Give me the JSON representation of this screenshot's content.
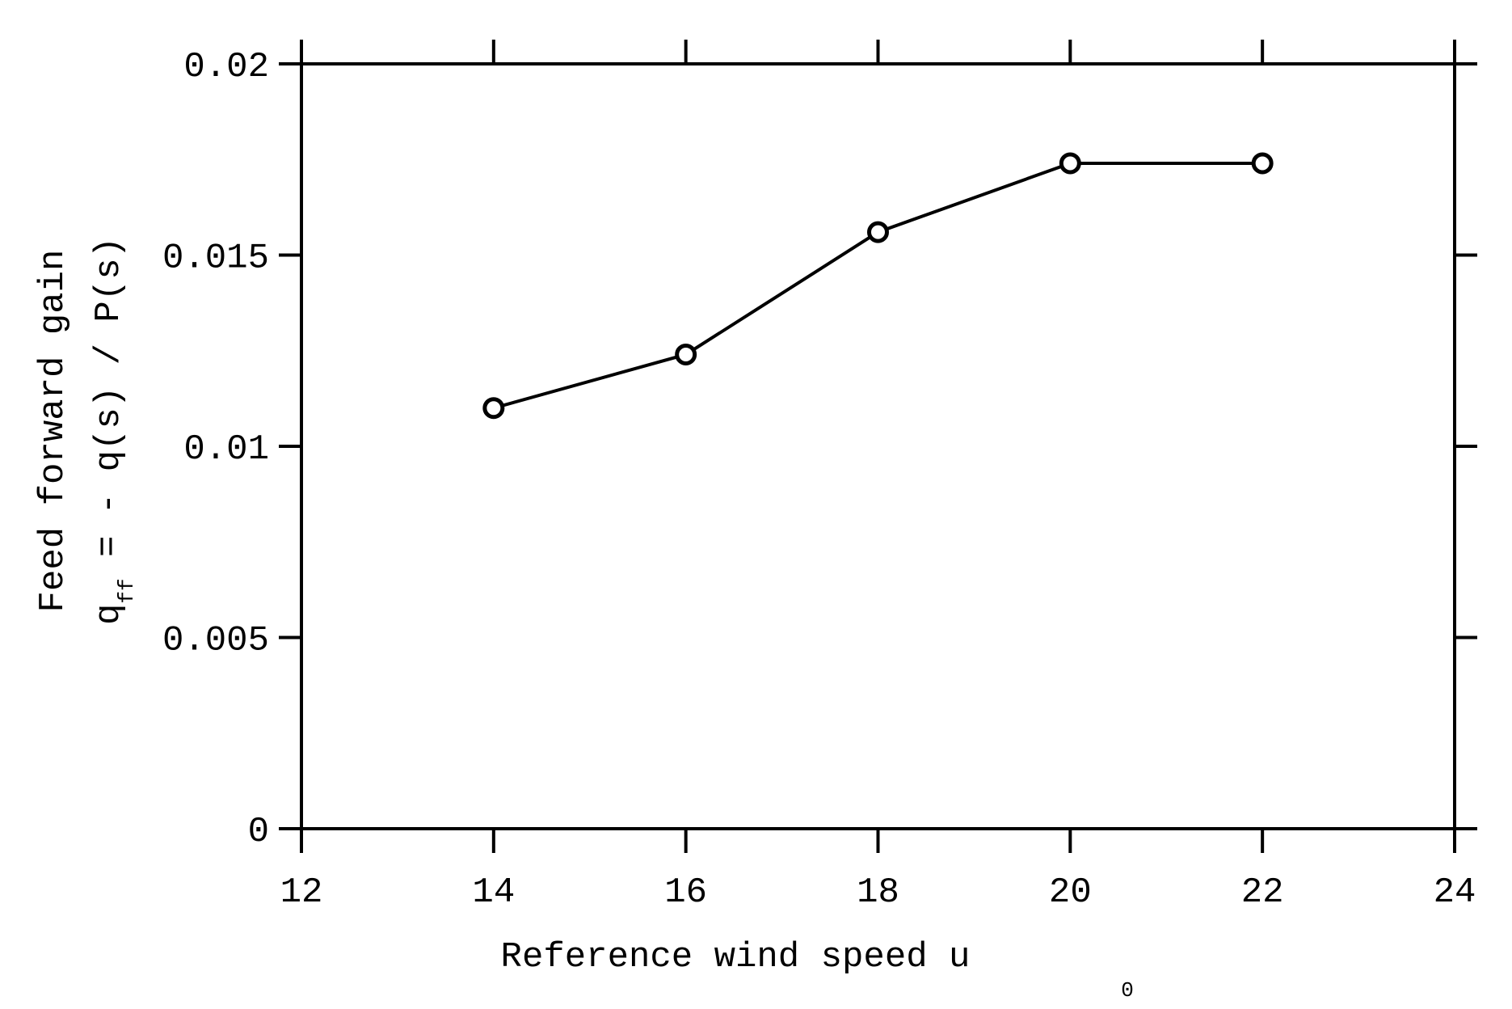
{
  "chart_data": {
    "type": "line",
    "x": [
      14,
      16,
      18,
      20,
      22
    ],
    "series": [
      {
        "values": [
          0.011,
          0.0124,
          0.0156,
          0.0174,
          0.0174
        ],
        "marker": "circle",
        "color": "#000000"
      }
    ],
    "xlim": [
      12,
      24
    ],
    "ylim": [
      0,
      0.02
    ],
    "xticks": [
      12,
      14,
      16,
      18,
      20,
      22,
      24
    ],
    "xtick_labels": [
      "12",
      "14",
      "16",
      "18",
      "20",
      "22",
      "24"
    ],
    "yticks": [
      0,
      0.005,
      0.01,
      0.015,
      0.02
    ],
    "ytick_labels": [
      "0",
      "0.005",
      "0.01",
      "0.015",
      "0.02"
    ],
    "xlabel": {
      "text": "Reference wind speed u",
      "subscript": "0"
    },
    "ylabel": {
      "line1": "Feed forward gain",
      "line2_prefix": "q",
      "line2_subscript": "ff",
      "line2_rest": " = - q(s) / P(s)"
    },
    "grid": false,
    "legend": "none"
  }
}
